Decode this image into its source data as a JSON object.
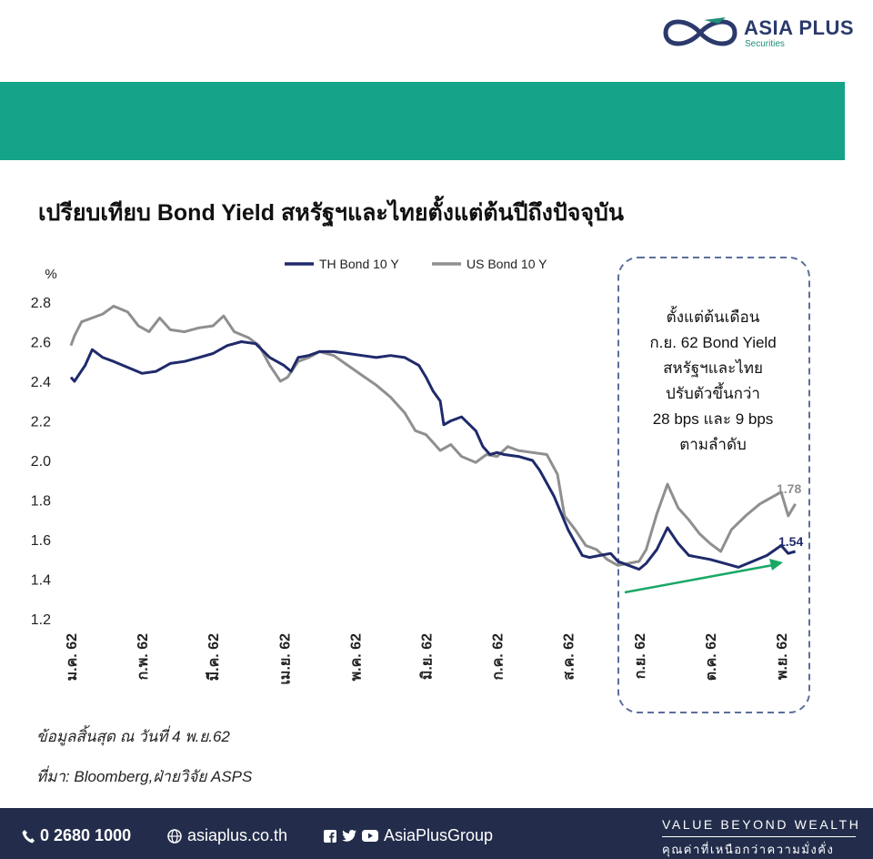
{
  "logo": {
    "brand": "ASIA PLUS",
    "sub": "Securities"
  },
  "title": "เปรียบเทียบ Bond Yield สหรัฐฯและไทยตั้งแต่ต้นปีถึงปัจจุบัน",
  "chart_data": {
    "type": "line",
    "ylabel": "%",
    "ylim": [
      1.2,
      2.8
    ],
    "yticks": [
      "2.8",
      "2.6",
      "2.4",
      "2.2",
      "2.0",
      "1.8",
      "1.6",
      "1.4",
      "1.2"
    ],
    "categories": [
      "ม.ค. 62",
      "ก.พ. 62",
      "มี.ค. 62",
      "เม.ย. 62",
      "พ.ค. 62",
      "มิ.ย. 62",
      "ก.ค. 62",
      "ส.ค. 62",
      "ก.ย. 62",
      "ต.ค. 62",
      "พ.ย. 62"
    ],
    "grid": false,
    "legend": "top-center",
    "series": [
      {
        "name": "TH Bond 10 Y",
        "color": "#1f2a6b",
        "x": [
          0,
          0.05,
          0.2,
          0.3,
          0.45,
          0.6,
          0.8,
          1.0,
          1.2,
          1.4,
          1.6,
          1.8,
          2.0,
          2.2,
          2.4,
          2.6,
          2.8,
          3.0,
          3.1,
          3.2,
          3.35,
          3.5,
          3.7,
          3.9,
          4.1,
          4.3,
          4.5,
          4.7,
          4.9,
          5.0,
          5.1,
          5.2,
          5.25,
          5.35,
          5.5,
          5.7,
          5.8,
          5.9,
          6.0,
          6.1,
          6.3,
          6.5,
          6.6,
          6.8,
          7.0,
          7.2,
          7.3,
          7.45,
          7.6,
          7.7,
          7.85,
          8.0,
          8.1,
          8.25,
          8.4,
          8.55,
          8.7,
          9.0,
          9.2,
          9.4,
          9.6,
          9.8,
          10.0,
          10.1,
          10.2
        ],
        "values": [
          2.42,
          2.4,
          2.48,
          2.56,
          2.52,
          2.5,
          2.47,
          2.44,
          2.45,
          2.49,
          2.5,
          2.52,
          2.54,
          2.58,
          2.6,
          2.59,
          2.52,
          2.48,
          2.45,
          2.52,
          2.53,
          2.55,
          2.55,
          2.54,
          2.53,
          2.52,
          2.53,
          2.52,
          2.48,
          2.42,
          2.35,
          2.3,
          2.18,
          2.2,
          2.22,
          2.15,
          2.07,
          2.03,
          2.04,
          2.03,
          2.02,
          2.0,
          1.95,
          1.82,
          1.65,
          1.52,
          1.51,
          1.52,
          1.53,
          1.49,
          1.47,
          1.45,
          1.48,
          1.55,
          1.66,
          1.58,
          1.52,
          1.5,
          1.48,
          1.46,
          1.49,
          1.52,
          1.57,
          1.53,
          1.54
        ]
      },
      {
        "name": "US Bond 10 Y",
        "color": "#8f8f8f",
        "x": [
          0,
          0.05,
          0.15,
          0.3,
          0.45,
          0.6,
          0.8,
          0.95,
          1.1,
          1.25,
          1.4,
          1.6,
          1.8,
          2.0,
          2.15,
          2.3,
          2.5,
          2.65,
          2.8,
          2.95,
          3.05,
          3.2,
          3.35,
          3.5,
          3.7,
          3.9,
          4.1,
          4.3,
          4.5,
          4.7,
          4.85,
          5.0,
          5.1,
          5.2,
          5.35,
          5.5,
          5.7,
          5.85,
          6.0,
          6.15,
          6.3,
          6.5,
          6.7,
          6.85,
          6.95,
          7.1,
          7.25,
          7.4,
          7.55,
          7.7,
          7.85,
          8.0,
          8.1,
          8.25,
          8.4,
          8.55,
          8.7,
          8.85,
          9.0,
          9.15,
          9.3,
          9.5,
          9.7,
          9.9,
          10.0,
          10.1,
          10.2
        ],
        "values": [
          2.58,
          2.63,
          2.7,
          2.72,
          2.74,
          2.78,
          2.75,
          2.68,
          2.65,
          2.72,
          2.66,
          2.65,
          2.67,
          2.68,
          2.73,
          2.65,
          2.62,
          2.58,
          2.48,
          2.4,
          2.42,
          2.5,
          2.52,
          2.55,
          2.53,
          2.48,
          2.43,
          2.38,
          2.32,
          2.24,
          2.15,
          2.13,
          2.09,
          2.05,
          2.08,
          2.02,
          1.99,
          2.03,
          2.02,
          2.07,
          2.05,
          2.04,
          2.03,
          1.93,
          1.72,
          1.65,
          1.57,
          1.55,
          1.5,
          1.47,
          1.48,
          1.49,
          1.55,
          1.73,
          1.88,
          1.76,
          1.7,
          1.63,
          1.58,
          1.54,
          1.65,
          1.72,
          1.78,
          1.82,
          1.84,
          1.72,
          1.78
        ]
      }
    ],
    "end_labels": [
      "1.78",
      "1.54"
    ],
    "annotation": [
      "ตั้งแต่ต้นเดือน",
      "ก.ย. 62 Bond Yield",
      "สหรัฐฯและไทย",
      "ปรับตัวขึ้นกว่า",
      "28 bps และ 9 bps",
      "ตามลำดับ"
    ],
    "trend_arrow_color": "#19a866"
  },
  "notes": {
    "date": "ข้อมูลสิ้นสุด ณ วันที่ 4 พ.ย.62",
    "source": "ที่มา: Bloomberg,ฝ่ายวิจัย ASPS"
  },
  "footer": {
    "phone": "0 2680 1000",
    "website": "asiaplus.co.th",
    "social": "AsiaPlusGroup",
    "slogan": "VALUE BEYOND WEALTH",
    "slogan_th": "คุณค่าที่เหนือกว่าความมั่งคั่ง"
  }
}
